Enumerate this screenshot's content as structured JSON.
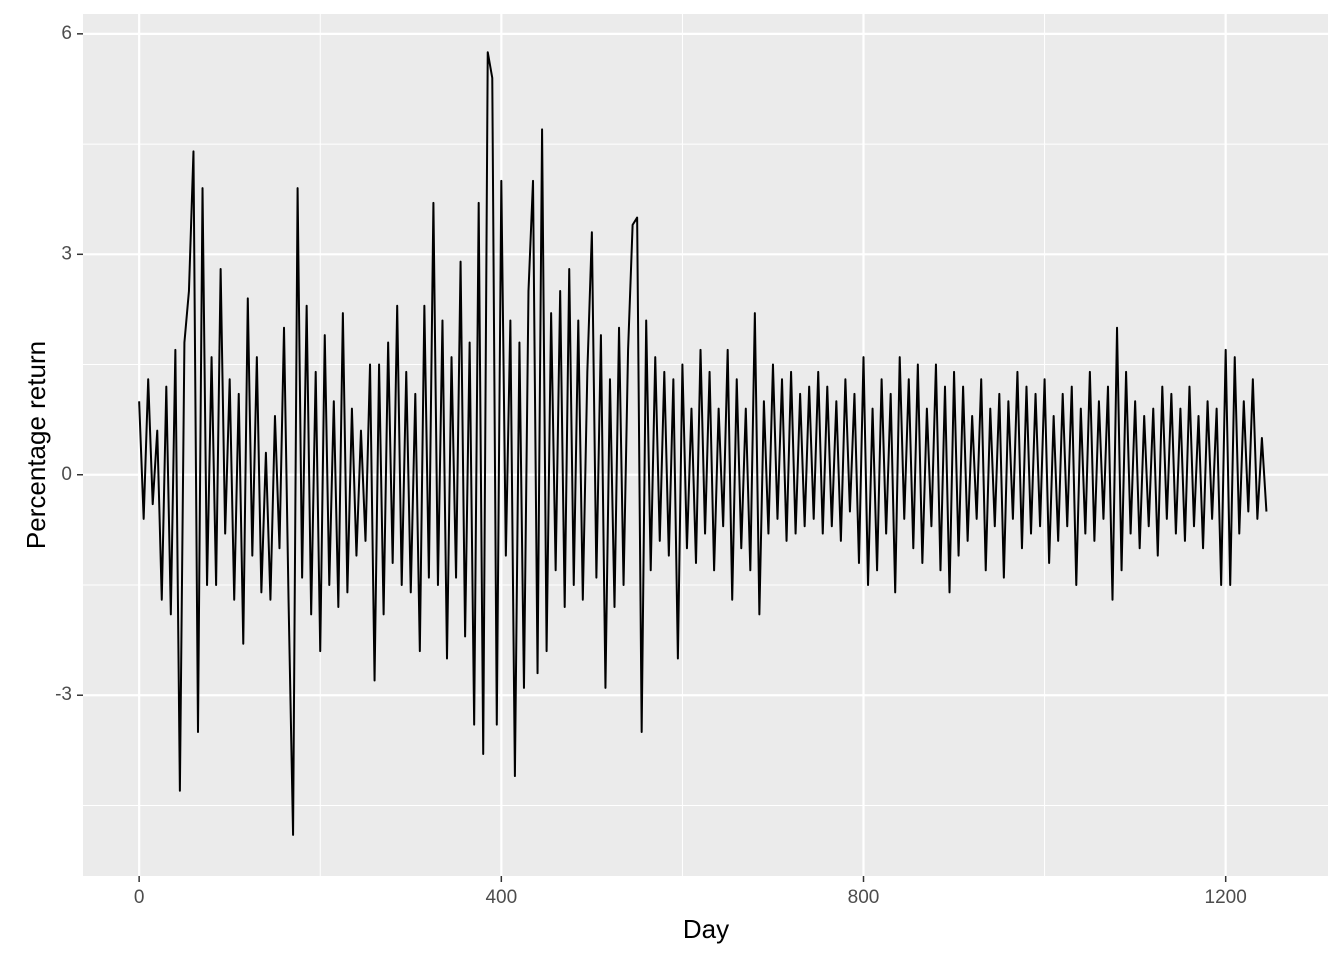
{
  "chart_data": {
    "type": "line",
    "x_label": "Day",
    "y_label": "Percentage return",
    "xlim": [
      -62,
      1313
    ],
    "ylim": [
      -5.46,
      6.27
    ],
    "xticks": [
      0,
      400,
      800,
      1200
    ],
    "yticks": [
      -3,
      0,
      3,
      6
    ],
    "grid": true,
    "x": [
      0,
      5,
      10,
      15,
      20,
      25,
      30,
      35,
      40,
      45,
      50,
      55,
      60,
      65,
      70,
      75,
      80,
      85,
      90,
      95,
      100,
      105,
      110,
      115,
      120,
      125,
      130,
      135,
      140,
      145,
      150,
      155,
      160,
      165,
      170,
      175,
      180,
      185,
      190,
      195,
      200,
      205,
      210,
      215,
      220,
      225,
      230,
      235,
      240,
      245,
      250,
      255,
      260,
      265,
      270,
      275,
      280,
      285,
      290,
      295,
      300,
      305,
      310,
      315,
      320,
      325,
      330,
      335,
      340,
      345,
      350,
      355,
      360,
      365,
      370,
      375,
      380,
      385,
      390,
      395,
      400,
      405,
      410,
      415,
      420,
      425,
      430,
      435,
      440,
      445,
      450,
      455,
      460,
      465,
      470,
      475,
      480,
      485,
      490,
      495,
      500,
      505,
      510,
      515,
      520,
      525,
      530,
      535,
      540,
      545,
      550,
      555,
      560,
      565,
      570,
      575,
      580,
      585,
      590,
      595,
      600,
      605,
      610,
      615,
      620,
      625,
      630,
      635,
      640,
      645,
      650,
      655,
      660,
      665,
      670,
      675,
      680,
      685,
      690,
      695,
      700,
      705,
      710,
      715,
      720,
      725,
      730,
      735,
      740,
      745,
      750,
      755,
      760,
      765,
      770,
      775,
      780,
      785,
      790,
      795,
      800,
      805,
      810,
      815,
      820,
      825,
      830,
      835,
      840,
      845,
      850,
      855,
      860,
      865,
      870,
      875,
      880,
      885,
      890,
      895,
      900,
      905,
      910,
      915,
      920,
      925,
      930,
      935,
      940,
      945,
      950,
      955,
      960,
      965,
      970,
      975,
      980,
      985,
      990,
      995,
      1000,
      1005,
      1010,
      1015,
      1020,
      1025,
      1030,
      1035,
      1040,
      1045,
      1050,
      1055,
      1060,
      1065,
      1070,
      1075,
      1080,
      1085,
      1090,
      1095,
      1100,
      1105,
      1110,
      1115,
      1120,
      1125,
      1130,
      1135,
      1140,
      1145,
      1150,
      1155,
      1160,
      1165,
      1170,
      1175,
      1180,
      1185,
      1190,
      1195,
      1200,
      1205,
      1210,
      1215,
      1220,
      1225,
      1230,
      1235,
      1240,
      1245
    ],
    "series": [
      {
        "color": "#000000",
        "values": [
          1.0,
          -0.6,
          1.3,
          -0.4,
          0.6,
          -1.7,
          1.2,
          -1.9,
          1.7,
          -4.3,
          1.8,
          2.5,
          4.4,
          -3.5,
          3.9,
          -1.5,
          1.6,
          -1.5,
          2.8,
          -0.8,
          1.3,
          -1.7,
          1.1,
          -2.3,
          2.4,
          -1.1,
          1.6,
          -1.6,
          0.3,
          -1.7,
          0.8,
          -1.0,
          2.0,
          -1.7,
          -4.9,
          3.9,
          -1.4,
          2.3,
          -1.9,
          1.4,
          -2.4,
          1.9,
          -1.5,
          1.0,
          -1.8,
          2.2,
          -1.6,
          0.9,
          -1.1,
          0.6,
          -0.9,
          1.5,
          -2.8,
          1.5,
          -1.9,
          1.8,
          -1.2,
          2.3,
          -1.5,
          1.4,
          -1.6,
          1.1,
          -2.4,
          2.3,
          -1.4,
          3.7,
          -1.5,
          2.1,
          -2.5,
          1.6,
          -1.4,
          2.9,
          -2.2,
          1.8,
          -3.4,
          3.7,
          -3.8,
          5.75,
          5.4,
          -3.4,
          4.0,
          -1.1,
          2.1,
          -4.1,
          1.8,
          -2.9,
          2.5,
          4.0,
          -2.7,
          4.7,
          -2.4,
          2.2,
          -1.3,
          2.5,
          -1.8,
          2.8,
          -1.5,
          2.1,
          -1.7,
          1.4,
          3.3,
          -1.4,
          1.9,
          -2.9,
          1.3,
          -1.8,
          2.0,
          -1.5,
          1.7,
          3.4,
          3.5,
          -3.5,
          2.1,
          -1.3,
          1.6,
          -0.9,
          1.4,
          -1.1,
          1.3,
          -2.5,
          1.5,
          -1.0,
          0.9,
          -1.2,
          1.7,
          -0.8,
          1.4,
          -1.3,
          0.9,
          -0.7,
          1.7,
          -1.7,
          1.3,
          -1.0,
          0.9,
          -1.3,
          2.2,
          -1.9,
          1.0,
          -0.8,
          1.5,
          -0.6,
          1.3,
          -0.9,
          1.4,
          -0.8,
          1.1,
          -0.7,
          1.2,
          -0.6,
          1.4,
          -0.8,
          1.2,
          -0.7,
          1.0,
          -0.9,
          1.3,
          -0.5,
          1.1,
          -1.2,
          1.6,
          -1.5,
          0.9,
          -1.3,
          1.3,
          -0.8,
          1.1,
          -1.6,
          1.6,
          -0.6,
          1.3,
          -1.0,
          1.5,
          -1.2,
          0.9,
          -0.7,
          1.5,
          -1.3,
          1.2,
          -1.6,
          1.4,
          -1.1,
          1.2,
          -0.9,
          0.8,
          -0.6,
          1.3,
          -1.3,
          0.9,
          -0.7,
          1.1,
          -1.4,
          1.0,
          -0.6,
          1.4,
          -1.0,
          1.2,
          -0.8,
          1.1,
          -0.7,
          1.3,
          -1.2,
          0.8,
          -0.9,
          1.1,
          -0.7,
          1.2,
          -1.5,
          0.9,
          -0.8,
          1.4,
          -0.9,
          1.0,
          -0.6,
          1.2,
          -1.7,
          2.0,
          -1.3,
          1.4,
          -0.8,
          1.0,
          -1.0,
          0.8,
          -0.7,
          0.9,
          -1.1,
          1.2,
          -0.6,
          1.1,
          -0.8,
          0.9,
          -0.9,
          1.2,
          -0.7,
          0.8,
          -1.0,
          1.0,
          -0.6,
          0.9,
          -1.5,
          1.7,
          -1.5,
          1.6,
          -0.8,
          1.0,
          -0.5,
          1.3,
          -0.6,
          0.5,
          -0.5
        ]
      }
    ]
  }
}
